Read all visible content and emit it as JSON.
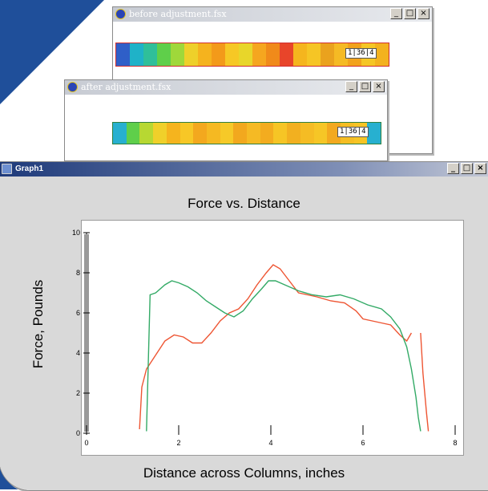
{
  "windows": {
    "before": {
      "title": "before adjustment.fsx",
      "readout": "1|36|4"
    },
    "after": {
      "title": "after adjustment.fsx",
      "readout": "1|36|4"
    },
    "graph": {
      "title": "Graph1"
    }
  },
  "controls": {
    "minimize": "_",
    "maximize": "□",
    "close": "×"
  },
  "colorbars": {
    "before": [
      "#2f5fc8",
      "#1fb2c8",
      "#2fbf9a",
      "#5fcf4a",
      "#9fd83a",
      "#eed02a",
      "#f5b31e",
      "#f39a1a",
      "#f6c825",
      "#e8d62a",
      "#f5a61f",
      "#f08a1a",
      "#e8452a",
      "#f5b51e",
      "#f6c525",
      "#eaa21e",
      "#f5ba24",
      "#f2a21c",
      "#f5c625",
      "#f3b21f"
    ],
    "after": [
      "#27b0d0",
      "#5fcf4a",
      "#b7d832",
      "#f0d02a",
      "#f5b41e",
      "#f7c726",
      "#f3a81e",
      "#f5b922",
      "#f6c928",
      "#f2a81e",
      "#f5ba24",
      "#f3ac1f",
      "#f6c525",
      "#f2b020",
      "#f5bc24",
      "#f6c626",
      "#f3a91f",
      "#f5bd23",
      "#f6c424",
      "#27b0d0"
    ]
  },
  "chart_data": {
    "type": "line",
    "title": "Force vs. Distance",
    "xlabel": "Distance across Columns, inches",
    "ylabel": "Force, Pounds",
    "xlim": [
      0,
      8
    ],
    "ylim": [
      0,
      10
    ],
    "x_ticks": [
      "0",
      "2",
      "4",
      "6",
      "8"
    ],
    "y_ticks": [
      "0",
      "2",
      "4",
      "6",
      "8",
      "10"
    ],
    "series": [
      {
        "color": "#ee5533",
        "segments": [
          [
            [
              1.15,
              0.2
            ],
            [
              1.2,
              2.3
            ],
            [
              1.3,
              3.2
            ],
            [
              1.5,
              3.9
            ],
            [
              1.7,
              4.6
            ],
            [
              1.9,
              4.9
            ],
            [
              2.1,
              4.8
            ],
            [
              2.3,
              4.5
            ],
            [
              2.5,
              4.5
            ],
            [
              2.7,
              5.0
            ],
            [
              2.9,
              5.6
            ],
            [
              3.1,
              6.0
            ],
            [
              3.3,
              6.2
            ],
            [
              3.5,
              6.7
            ],
            [
              3.7,
              7.4
            ],
            [
              3.9,
              8.0
            ],
            [
              4.05,
              8.4
            ],
            [
              4.2,
              8.2
            ],
            [
              4.4,
              7.6
            ],
            [
              4.6,
              7.0
            ],
            [
              4.8,
              6.9
            ],
            [
              5.0,
              6.8
            ],
            [
              5.3,
              6.6
            ],
            [
              5.6,
              6.5
            ],
            [
              5.85,
              6.1
            ],
            [
              6.0,
              5.7
            ],
            [
              6.2,
              5.6
            ],
            [
              6.4,
              5.5
            ],
            [
              6.6,
              5.4
            ],
            [
              6.8,
              4.9
            ],
            [
              6.95,
              4.6
            ],
            [
              7.05,
              5.0
            ]
          ],
          [
            [
              7.25,
              5.0
            ],
            [
              7.3,
              3.0
            ],
            [
              7.38,
              1.0
            ],
            [
              7.42,
              0.1
            ]
          ]
        ]
      },
      {
        "color": "#33aa66",
        "segments": [
          [
            [
              1.3,
              0.1
            ],
            [
              1.38,
              6.9
            ],
            [
              1.5,
              7.0
            ],
            [
              1.7,
              7.4
            ],
            [
              1.85,
              7.6
            ],
            [
              2.0,
              7.5
            ],
            [
              2.2,
              7.3
            ],
            [
              2.4,
              7.0
            ],
            [
              2.6,
              6.6
            ],
            [
              2.8,
              6.3
            ],
            [
              3.0,
              6.0
            ],
            [
              3.2,
              5.8
            ],
            [
              3.4,
              6.1
            ],
            [
              3.6,
              6.7
            ],
            [
              3.8,
              7.2
            ],
            [
              3.95,
              7.6
            ],
            [
              4.1,
              7.6
            ],
            [
              4.3,
              7.4
            ],
            [
              4.6,
              7.1
            ],
            [
              4.9,
              6.9
            ],
            [
              5.2,
              6.8
            ],
            [
              5.5,
              6.9
            ],
            [
              5.8,
              6.7
            ],
            [
              6.1,
              6.4
            ],
            [
              6.4,
              6.2
            ],
            [
              6.6,
              5.8
            ],
            [
              6.8,
              5.2
            ],
            [
              6.95,
              4.3
            ],
            [
              7.05,
              3.2
            ],
            [
              7.15,
              1.8
            ],
            [
              7.2,
              0.8
            ],
            [
              7.25,
              0.1
            ]
          ]
        ]
      }
    ]
  }
}
